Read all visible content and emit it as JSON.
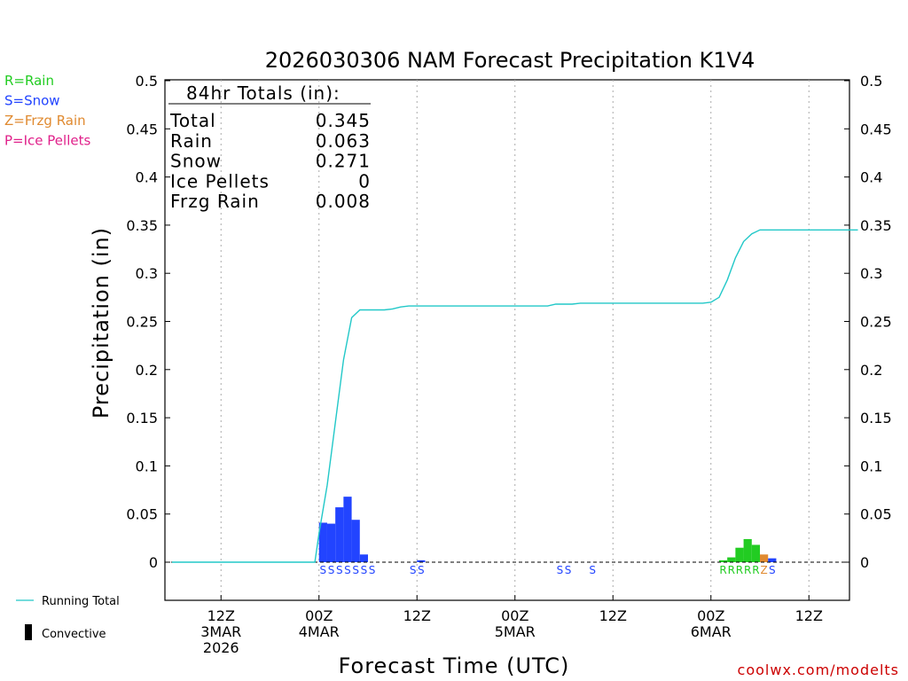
{
  "chart_data": {
    "type": "bar",
    "title": "2026030306 NAM Forecast Precipitation K1V4",
    "xlabel": "Forecast Time (UTC)",
    "ylabel": "Precipitation (in)",
    "ylim": [
      -0.04,
      0.5
    ],
    "yticks": [
      0,
      0.05,
      0.1,
      0.15,
      0.2,
      0.25,
      0.3,
      0.35,
      0.4,
      0.45,
      0.5
    ],
    "ytick_labels": [
      "0",
      "0.05",
      "0.1",
      "0.15",
      "0.2",
      "0.25",
      "0.3",
      "0.35",
      "0.4",
      "0.45",
      "0.5"
    ],
    "x_unit": "forecast hour",
    "xlim": [
      0,
      84
    ],
    "xticks": [
      {
        "hour": 6,
        "lines": [
          "12Z",
          "3MAR",
          "2026"
        ]
      },
      {
        "hour": 18,
        "lines": [
          "00Z",
          "4MAR"
        ]
      },
      {
        "hour": 30,
        "lines": [
          "12Z"
        ]
      },
      {
        "hour": 42,
        "lines": [
          "00Z",
          "5MAR"
        ]
      },
      {
        "hour": 54,
        "lines": [
          "12Z"
        ]
      },
      {
        "hour": 66,
        "lines": [
          "00Z",
          "6MAR"
        ]
      },
      {
        "hour": 78,
        "lines": [
          "12Z"
        ]
      }
    ],
    "type_legend": [
      {
        "code": "R",
        "label": "R=Rain",
        "color": "#22cc22"
      },
      {
        "code": "S",
        "label": "S=Snow",
        "color": "#2244ff"
      },
      {
        "code": "Z",
        "label": "Z=Frzg Rain",
        "color": "#e08a30"
      },
      {
        "code": "P",
        "label": "P=Ice Pellets",
        "color": "#e0208a"
      }
    ],
    "bars": [
      {
        "hour": 18,
        "value": 0.041,
        "type": "S"
      },
      {
        "hour": 19,
        "value": 0.04,
        "type": "S"
      },
      {
        "hour": 20,
        "value": 0.057,
        "type": "S"
      },
      {
        "hour": 21,
        "value": 0.068,
        "type": "S"
      },
      {
        "hour": 22,
        "value": 0.044,
        "type": "S"
      },
      {
        "hour": 23,
        "value": 0.008,
        "type": "S"
      },
      {
        "hour": 30,
        "value": 0.002,
        "type": "S"
      },
      {
        "hour": 67,
        "value": 0.002,
        "type": "R"
      },
      {
        "hour": 68,
        "value": 0.005,
        "type": "R"
      },
      {
        "hour": 69,
        "value": 0.015,
        "type": "R"
      },
      {
        "hour": 70,
        "value": 0.024,
        "type": "R"
      },
      {
        "hour": 71,
        "value": 0.018,
        "type": "R"
      },
      {
        "hour": 72,
        "value": 0.008,
        "type": "Z"
      },
      {
        "hour": 73,
        "value": 0.004,
        "type": "S"
      }
    ],
    "type_labels": [
      {
        "hour": 18,
        "code": "S"
      },
      {
        "hour": 19,
        "code": "S"
      },
      {
        "hour": 20,
        "code": "S"
      },
      {
        "hour": 21,
        "code": "S"
      },
      {
        "hour": 22,
        "code": "S"
      },
      {
        "hour": 23,
        "code": "S"
      },
      {
        "hour": 24,
        "code": "S"
      },
      {
        "hour": 29,
        "code": "S"
      },
      {
        "hour": 30,
        "code": "S"
      },
      {
        "hour": 47,
        "code": "S"
      },
      {
        "hour": 48,
        "code": "S"
      },
      {
        "hour": 51,
        "code": "S"
      },
      {
        "hour": 67,
        "code": "R"
      },
      {
        "hour": 68,
        "code": "R"
      },
      {
        "hour": 69,
        "code": "R"
      },
      {
        "hour": 70,
        "code": "R"
      },
      {
        "hour": 71,
        "code": "R"
      },
      {
        "hour": 72,
        "code": "Z"
      },
      {
        "hour": 73,
        "code": "S"
      }
    ],
    "running_total": {
      "name": "Running Total",
      "color": "#22c8c8",
      "x": [
        0,
        17.5,
        18,
        19,
        20,
        21,
        22,
        23,
        24,
        25,
        26,
        27,
        28,
        29,
        30,
        31,
        32,
        34,
        40,
        46,
        47,
        48,
        49,
        50,
        52,
        60,
        65,
        66,
        67,
        68,
        69,
        70,
        71,
        72,
        73,
        84
      ],
      "y": [
        0,
        0,
        0.03,
        0.08,
        0.145,
        0.21,
        0.254,
        0.262,
        0.262,
        0.262,
        0.262,
        0.263,
        0.265,
        0.266,
        0.266,
        0.266,
        0.266,
        0.266,
        0.266,
        0.266,
        0.268,
        0.268,
        0.268,
        0.269,
        0.269,
        0.269,
        0.269,
        0.27,
        0.275,
        0.293,
        0.316,
        0.333,
        0.341,
        0.345,
        0.345,
        0.345
      ]
    },
    "convective_label": "Convective",
    "totals_box": {
      "heading": "84hr Totals (in):",
      "rows": [
        {
          "label": "Total",
          "value": "0.345"
        },
        {
          "label": "Rain",
          "value": "0.063"
        },
        {
          "label": "Snow",
          "value": "0.271"
        },
        {
          "label": "Ice Pellets",
          "value": "0"
        },
        {
          "label": "Frzg Rain",
          "value": "0.008"
        }
      ]
    },
    "credit": "coolwx.com/modelts"
  }
}
